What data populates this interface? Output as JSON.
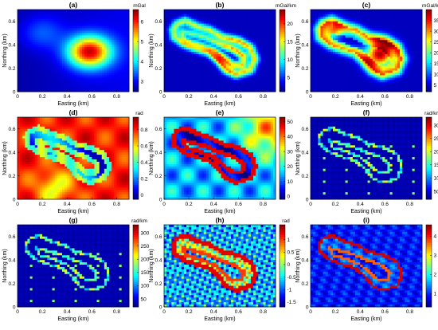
{
  "figure": {
    "x_label": "Easting (km)",
    "y_label": "Northing (km)",
    "x_ticks": [
      "0",
      "0.2",
      "0.4",
      "0.6",
      "0.8"
    ],
    "y_ticks": [
      "0",
      "0.2",
      "0.4",
      "0.6"
    ]
  },
  "chart_data": [
    {
      "type": "heatmap",
      "panel": "(a)",
      "unit": "mGal",
      "colorbar_ticks": [
        "3",
        "4",
        "5",
        "6"
      ],
      "clim": [
        2.5,
        6.6
      ],
      "xlim": [
        0,
        0.9
      ],
      "ylim": [
        0,
        0.7
      ],
      "pattern": "blob"
    },
    {
      "type": "heatmap",
      "panel": "(b)",
      "unit": "mGal/km",
      "colorbar_ticks": [
        "5",
        "10",
        "15",
        "20"
      ],
      "clim": [
        1,
        24
      ],
      "xlim": [
        0,
        0.9
      ],
      "ylim": [
        0,
        0.7
      ],
      "pattern": "ring_gradient"
    },
    {
      "type": "heatmap",
      "panel": "(c)",
      "unit": "mGal/km",
      "colorbar_ticks": [
        "5",
        "10",
        "15",
        "20",
        "25",
        "30",
        "35"
      ],
      "clim": [
        2,
        40
      ],
      "xlim": [
        0,
        0.9
      ],
      "ylim": [
        0,
        0.7
      ],
      "pattern": "ring_filled"
    },
    {
      "type": "heatmap",
      "panel": "(d)",
      "unit": "rad",
      "colorbar_ticks": [
        "0",
        "0.2",
        "0.4",
        "0.6",
        "0.8"
      ],
      "clim": [
        -0.05,
        0.95
      ],
      "xlim": [
        0,
        0.9
      ],
      "ylim": [
        0,
        0.7
      ],
      "pattern": "tilt"
    },
    {
      "type": "heatmap",
      "panel": "(e)",
      "unit": "",
      "colorbar_ticks": [
        "0",
        "10",
        "20",
        "30",
        "40",
        "50"
      ],
      "clim": [
        -2,
        53
      ],
      "xlim": [
        0,
        0.9
      ],
      "ylim": [
        0,
        0.7
      ],
      "pattern": "theta"
    },
    {
      "type": "heatmap",
      "panel": "(f)",
      "unit": "rad/km",
      "colorbar_ticks": [
        "50",
        "100",
        "150",
        "200",
        "250",
        "300"
      ],
      "clim": [
        20,
        330
      ],
      "xlim": [
        0,
        0.9
      ],
      "ylim": [
        0,
        0.7
      ],
      "pattern": "edges_thin"
    },
    {
      "type": "heatmap",
      "panel": "(g)",
      "unit": "rad/km",
      "colorbar_ticks": [
        "50",
        "100",
        "150",
        "200",
        "250",
        "300"
      ],
      "clim": [
        20,
        330
      ],
      "xlim": [
        0,
        0.9
      ],
      "ylim": [
        0,
        0.7
      ],
      "pattern": "edges_thin"
    },
    {
      "type": "heatmap",
      "panel": "(h)",
      "unit": "rad",
      "colorbar_ticks": [
        "-1.5",
        "-1",
        "-0.5",
        "0",
        "0.5",
        "1"
      ],
      "clim": [
        -1.7,
        1.6
      ],
      "xlim": [
        0,
        0.9
      ],
      "ylim": [
        0,
        0.7
      ],
      "pattern": "textured"
    },
    {
      "type": "heatmap",
      "panel": "(i)",
      "unit": "",
      "colorbar_ticks": [
        "1",
        "2",
        "3",
        "4"
      ],
      "clim": [
        0.3,
        4.6
      ],
      "xlim": [
        0,
        0.9
      ],
      "ylim": [
        0,
        0.7
      ],
      "pattern": "sharp_edges"
    }
  ]
}
